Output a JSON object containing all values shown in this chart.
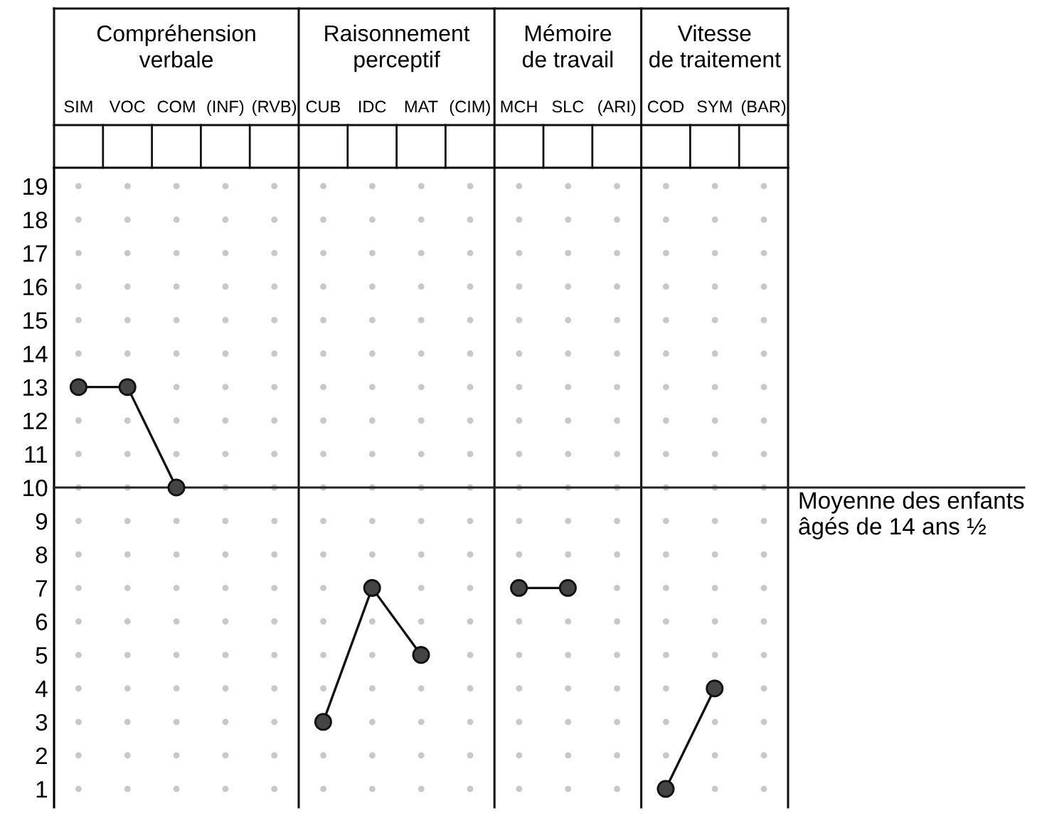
{
  "chart_data": {
    "type": "line",
    "categories": [
      "SIM",
      "VOC",
      "COM",
      "(INF)",
      "(RVB)",
      "CUB",
      "IDC",
      "MAT",
      "(CIM)",
      "MCH",
      "SLC",
      "(ARI)",
      "COD",
      "SYM",
      "(BAR)"
    ],
    "series": [
      {
        "color": "#444444",
        "values": [
          13,
          13,
          10,
          null,
          null,
          null,
          null,
          null,
          null,
          null,
          null,
          null,
          null,
          null,
          null
        ]
      },
      {
        "color": "#444444",
        "values": [
          null,
          null,
          null,
          null,
          null,
          3,
          7,
          5,
          null,
          null,
          null,
          null,
          null,
          null,
          null
        ]
      },
      {
        "color": "#444444",
        "values": [
          null,
          null,
          null,
          null,
          null,
          null,
          null,
          null,
          null,
          7,
          7,
          null,
          null,
          null,
          null
        ]
      },
      {
        "color": "#444444",
        "values": [
          null,
          null,
          null,
          null,
          null,
          null,
          null,
          null,
          null,
          null,
          null,
          null,
          1,
          4,
          null
        ]
      }
    ],
    "ylim": [
      0.45,
      19.55
    ],
    "yticks": [
      1,
      2,
      3,
      4,
      5,
      6,
      7,
      8,
      9,
      10,
      11,
      12,
      13,
      14,
      15,
      16,
      17,
      18,
      19
    ],
    "grid": "y",
    "marker": "circle",
    "line_style": "solid",
    "ref_lines": [
      {
        "axis": "y",
        "value": 10,
        "label": "Moyenne des enfants\nâgés de 14 ans ½",
        "color": "#222222"
      }
    ],
    "annotations": [
      "Compréhension\nverbale",
      "Raisonnement\nperceptif",
      "Mémoire\nde travail",
      "Vitesse\nde traitement"
    ]
  }
}
